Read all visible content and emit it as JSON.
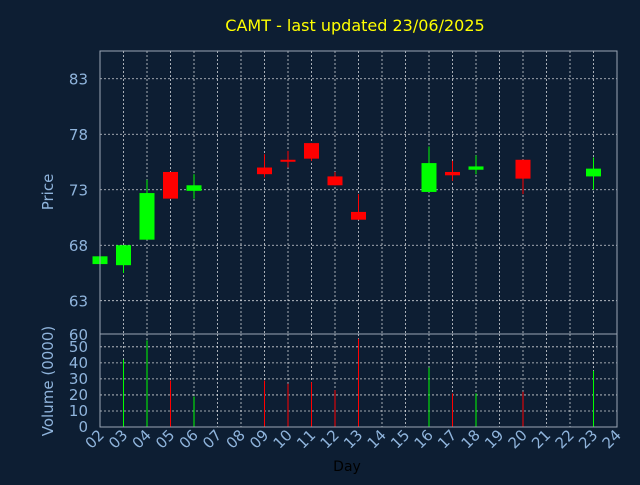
{
  "chart_data": {
    "type": "candlestick",
    "title": "CAMT - last updated 23/06/2025",
    "price_panel": {
      "ylabel": "Price",
      "ylim": [
        60,
        85.5
      ],
      "yticks": [
        60,
        63,
        68,
        73,
        78,
        83
      ]
    },
    "volume_panel": {
      "ylabel": "Volume (0000)",
      "ylim": [
        0,
        58
      ],
      "yticks": [
        0,
        10,
        20,
        30,
        40,
        50
      ]
    },
    "xlabel": "Day",
    "x_tick_labels": [
      "02",
      "03",
      "04",
      "05",
      "06",
      "07",
      "08",
      "09",
      "10",
      "11",
      "12",
      "13",
      "14",
      "15",
      "16",
      "17",
      "18",
      "19",
      "20",
      "21",
      "22",
      "23",
      "24"
    ],
    "candles": [
      {
        "day": "02",
        "open": 66.3,
        "close": 67.0,
        "high": 67.0,
        "low": 66.3,
        "volume": 0,
        "direction": "up"
      },
      {
        "day": "03",
        "open": 66.2,
        "close": 68.0,
        "high": 68.0,
        "low": 65.5,
        "volume": 42,
        "direction": "up"
      },
      {
        "day": "04",
        "open": 68.5,
        "close": 72.7,
        "high": 73.9,
        "low": 68.5,
        "volume": 54,
        "direction": "up"
      },
      {
        "day": "05",
        "open": 74.6,
        "close": 72.2,
        "high": 74.6,
        "low": 72.2,
        "volume": 29,
        "direction": "down"
      },
      {
        "day": "06",
        "open": 72.9,
        "close": 73.4,
        "high": 74.4,
        "low": 72.2,
        "volume": 19,
        "direction": "up"
      },
      {
        "day": "09",
        "open": 75.0,
        "close": 74.4,
        "high": 76.2,
        "low": 74.1,
        "volume": 29,
        "direction": "down"
      },
      {
        "day": "10",
        "open": 75.7,
        "close": 75.6,
        "high": 76.5,
        "low": 75.0,
        "volume": 27,
        "direction": "down"
      },
      {
        "day": "11",
        "open": 77.2,
        "close": 75.8,
        "high": 77.2,
        "low": 75.6,
        "volume": 28,
        "direction": "down"
      },
      {
        "day": "12",
        "open": 74.2,
        "close": 73.4,
        "high": 74.6,
        "low": 73.4,
        "volume": 23,
        "direction": "down"
      },
      {
        "day": "13",
        "open": 71.0,
        "close": 70.3,
        "high": 72.6,
        "low": 70.3,
        "volume": 55,
        "direction": "down"
      },
      {
        "day": "16",
        "open": 72.8,
        "close": 75.4,
        "high": 76.9,
        "low": 72.8,
        "volume": 37,
        "direction": "up"
      },
      {
        "day": "17",
        "open": 74.6,
        "close": 74.3,
        "high": 75.6,
        "low": 73.8,
        "volume": 21,
        "direction": "down"
      },
      {
        "day": "18",
        "open": 74.8,
        "close": 75.1,
        "high": 76.1,
        "low": 74.4,
        "volume": 21,
        "direction": "up"
      },
      {
        "day": "20",
        "open": 75.7,
        "close": 74.0,
        "high": 75.7,
        "low": 72.6,
        "volume": 22,
        "direction": "down"
      },
      {
        "day": "23",
        "open": 74.2,
        "close": 74.9,
        "high": 75.9,
        "low": 73.0,
        "volume": 35,
        "direction": "up"
      }
    ],
    "colors": {
      "background": "#0d1e33",
      "plot_border": "#9aa6b6",
      "grid": "#ffffff",
      "title": "#ffff00",
      "axis_text": "#8fb4dc",
      "xlabel": "#000000",
      "up": "#00ff00",
      "down": "#ff0000"
    },
    "grid": true
  }
}
